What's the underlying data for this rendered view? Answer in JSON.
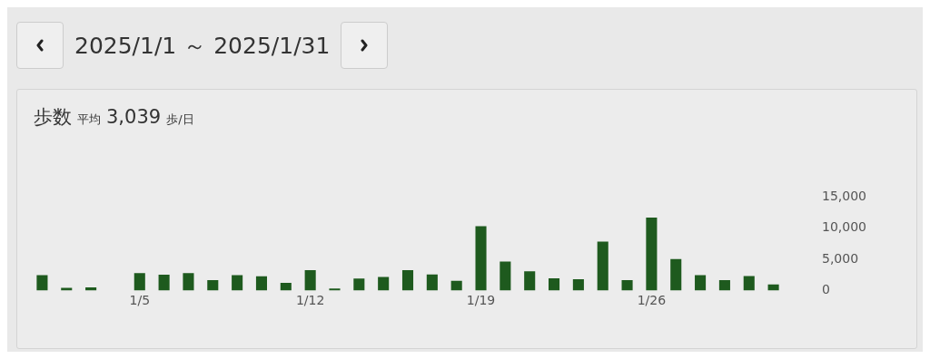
{
  "chart_data": {
    "type": "bar",
    "title": "歩数",
    "subtitle": "平均 3,039 歩/日",
    "annotations": [
      "2025/1/1 ～ 2025/1/31"
    ],
    "categories": [
      null,
      null,
      null,
      null,
      "1/5",
      null,
      null,
      null,
      null,
      null,
      null,
      "1/12",
      null,
      null,
      null,
      null,
      null,
      null,
      "1/19",
      null,
      null,
      null,
      null,
      null,
      null,
      "1/26",
      null,
      null,
      null,
      null,
      null
    ],
    "values": [
      2500,
      450,
      530,
      0,
      2800,
      2550,
      2800,
      1700,
      2500,
      2300,
      1250,
      3300,
      350,
      1950,
      2200,
      3300,
      2600,
      1570,
      10330,
      4670,
      3100,
      1960,
      1830,
      7880,
      1670,
      11700,
      5070,
      2480,
      1670,
      2350,
      1010
    ],
    "color": "#1e5a1e",
    "ylim": [
      0,
      15000
    ],
    "yticks": [
      0,
      {
        "value": 5000,
        "label": "5,000"
      },
      {
        "value": 10000,
        "label": "10,000"
      },
      {
        "value": 15000,
        "label": "15,000"
      }
    ],
    "grid": false,
    "legend": false
  }
}
